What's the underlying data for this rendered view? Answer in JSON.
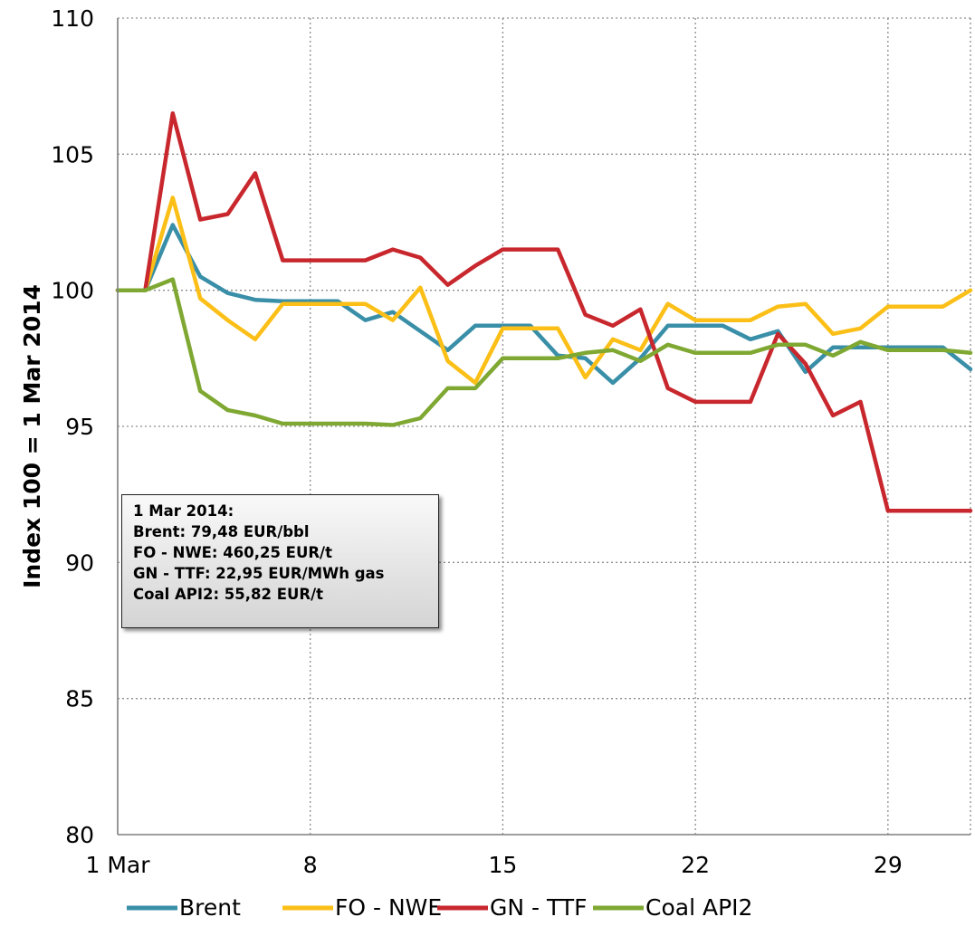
{
  "chart_data": {
    "type": "line",
    "title": "",
    "xlabel": "",
    "ylabel": "Index 100 =  1 Mar 2014",
    "ylim": [
      80,
      110
    ],
    "yticks": [
      "80",
      "85",
      "90",
      "95",
      "100",
      "105",
      "110"
    ],
    "xlim": [
      1,
      32
    ],
    "xticks": [
      {
        "label": "1 Mar",
        "day": 1
      },
      {
        "label": "8",
        "day": 8
      },
      {
        "label": "15",
        "day": 15
      },
      {
        "label": "22",
        "day": 22
      },
      {
        "label": "29",
        "day": 29
      }
    ],
    "grid": "dotted",
    "legend_position": "bottom",
    "x": [
      1,
      2,
      3,
      4,
      5,
      6,
      7,
      8,
      9,
      10,
      11,
      12,
      13,
      14,
      15,
      16,
      17,
      18,
      19,
      20,
      21,
      22,
      23,
      24,
      25,
      26,
      27,
      28,
      29,
      30,
      31,
      32
    ],
    "series": [
      {
        "name": "Brent",
        "color": "#3a8fa8",
        "values": [
          100,
          100,
          102.4,
          100.5,
          99.9,
          99.65,
          99.6,
          99.6,
          99.6,
          98.9,
          99.2,
          98.5,
          97.8,
          98.7,
          98.7,
          98.7,
          97.6,
          97.5,
          96.6,
          97.5,
          98.7,
          98.7,
          98.7,
          98.2,
          98.5,
          97,
          97.9,
          97.9,
          97.9,
          97.9,
          97.9,
          97.1
        ]
      },
      {
        "name": "FO - NWE",
        "color": "#fbbf17",
        "values": [
          100,
          100,
          103.4,
          99.7,
          98.9,
          98.2,
          99.5,
          99.5,
          99.5,
          99.5,
          98.9,
          100.1,
          97.4,
          96.6,
          98.6,
          98.6,
          98.6,
          96.8,
          98.2,
          97.8,
          99.5,
          98.9,
          98.9,
          98.9,
          99.4,
          99.5,
          98.4,
          98.6,
          99.4,
          99.4,
          99.4,
          100
        ]
      },
      {
        "name": "GN - TTF",
        "color": "#c8272d",
        "values": [
          100,
          100,
          106.5,
          102.6,
          102.8,
          104.3,
          101.1,
          101.1,
          101.1,
          101.1,
          101.5,
          101.2,
          100.2,
          100.9,
          101.5,
          101.5,
          101.5,
          99.1,
          98.7,
          99.3,
          96.4,
          95.9,
          95.9,
          95.9,
          98.4,
          97.3,
          95.4,
          95.9,
          91.9,
          91.9,
          91.9,
          91.9
        ]
      },
      {
        "name": "Coal API2",
        "color": "#7fa833",
        "values": [
          100,
          100,
          100.4,
          96.3,
          95.6,
          95.4,
          95.1,
          95.1,
          95.1,
          95.1,
          95.05,
          95.3,
          96.4,
          96.4,
          97.5,
          97.5,
          97.5,
          97.7,
          97.8,
          97.4,
          98,
          97.7,
          97.7,
          97.7,
          98,
          98,
          97.6,
          98.1,
          97.8,
          97.8,
          97.8,
          97.7
        ]
      }
    ],
    "annotation": {
      "lines": [
        "1 Mar 2014:",
        "Brent: 79,48 EUR/bbl",
        "FO - NWE: 460,25  EUR/t",
        "GN - TTF: 22,95 EUR/MWh gas",
        "Coal API2: 55,82 EUR/t"
      ]
    }
  }
}
